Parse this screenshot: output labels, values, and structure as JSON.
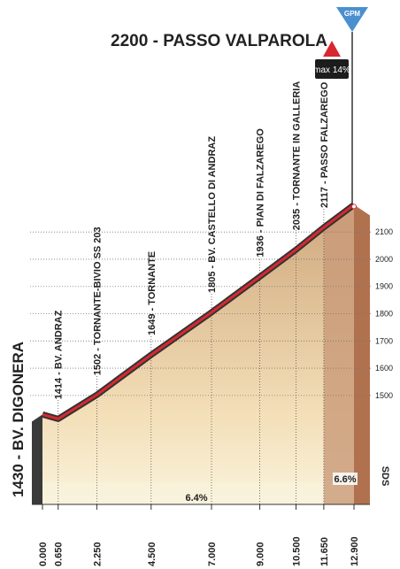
{
  "chart_data": {
    "type": "profile",
    "x": [
      0,
      0.65,
      2.25,
      4.5,
      7,
      9,
      10.5,
      11.65,
      12.9
    ],
    "values": [
      1430,
      1414,
      1502,
      1649,
      1805,
      1936,
      2035,
      2117,
      2200
    ],
    "labels": [
      "1430 - BV. DIGONERA",
      "1414 - BV. ANDRAZ",
      "1502 - TORNANTE-BIVIO SS 203",
      "1649 - TORNANTE",
      "1805 - BV. CASTELLO DI ANDRAZ",
      "1936 - PIAN DI FALZAREGO",
      "2035 - TORNANTE IN GALLERIA",
      "2117 - PASSO FALZAREGO",
      "2200 - PASSO VALPAROLA"
    ],
    "xlim": [
      0,
      12.9
    ],
    "xticks": [
      {
        "value": 0,
        "label": "0.000"
      },
      {
        "value": 0.65,
        "label": "0.650"
      },
      {
        "value": 2.25,
        "label": "2.250"
      },
      {
        "value": 4.5,
        "label": "4.500"
      },
      {
        "value": 7,
        "label": "7.000"
      },
      {
        "value": 9,
        "label": "9.000"
      },
      {
        "value": 10.5,
        "label": "10.500"
      },
      {
        "value": 11.65,
        "label": "11.650"
      },
      {
        "value": 12.9,
        "label": "12.900"
      }
    ],
    "ylim": [
      1100,
      2250
    ],
    "yticks": [
      1500,
      1600,
      1700,
      1800,
      1900,
      2000,
      2100
    ],
    "grid": true,
    "gradient_labels": [
      "6.4%",
      "6.6%"
    ],
    "max_gradient_label": "max 14%",
    "summit_badge": "GPM",
    "finish_badge": "SDS",
    "color": "#d7282f"
  }
}
